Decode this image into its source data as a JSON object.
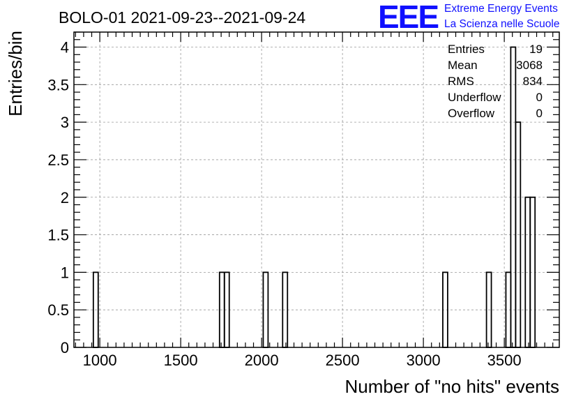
{
  "chart_data": {
    "type": "bar",
    "title": "BOLO-01 2021-09-23--2021-09-24",
    "xlabel": "Number of \"no hits\" events",
    "ylabel": "Entries/bin",
    "xlim": [
      840,
      3840
    ],
    "ylim": [
      0,
      4.2
    ],
    "grid": true,
    "bin_width": 30,
    "bins": [
      {
        "x0": 960,
        "value": 1
      },
      {
        "x0": 1740,
        "value": 1
      },
      {
        "x0": 1770,
        "value": 1
      },
      {
        "x0": 2010,
        "value": 1
      },
      {
        "x0": 2130,
        "value": 1
      },
      {
        "x0": 3120,
        "value": 1
      },
      {
        "x0": 3390,
        "value": 1
      },
      {
        "x0": 3510,
        "value": 1
      },
      {
        "x0": 3540,
        "value": 4
      },
      {
        "x0": 3570,
        "value": 3
      },
      {
        "x0": 3630,
        "value": 2
      },
      {
        "x0": 3660,
        "value": 2
      }
    ],
    "x_ticks": [
      {
        "value": 1000,
        "label": "1000"
      },
      {
        "value": 1500,
        "label": "1500"
      },
      {
        "value": 2000,
        "label": "2000"
      },
      {
        "value": 2500,
        "label": "2500"
      },
      {
        "value": 3000,
        "label": "3000"
      },
      {
        "value": 3500,
        "label": "3500"
      }
    ],
    "y_ticks": [
      {
        "value": 0,
        "label": "0"
      },
      {
        "value": 0.5,
        "label": "0.5"
      },
      {
        "value": 1,
        "label": "1"
      },
      {
        "value": 1.5,
        "label": "1.5"
      },
      {
        "value": 2,
        "label": "2"
      },
      {
        "value": 2.5,
        "label": "2.5"
      },
      {
        "value": 3,
        "label": "3"
      },
      {
        "value": 3.5,
        "label": "3.5"
      },
      {
        "value": 4,
        "label": "4"
      }
    ],
    "stats": [
      {
        "label": "Entries",
        "value": "19"
      },
      {
        "label": "Mean",
        "value": "3068"
      },
      {
        "label": "RMS",
        "value": "834"
      },
      {
        "label": "Underflow",
        "value": "0"
      },
      {
        "label": "Overflow",
        "value": "0"
      }
    ]
  },
  "logo": {
    "letters": "EEE",
    "line1": "Extreme Energy Events",
    "line2": "La Scienza nelle Scuole",
    "color": "#1010ff"
  }
}
